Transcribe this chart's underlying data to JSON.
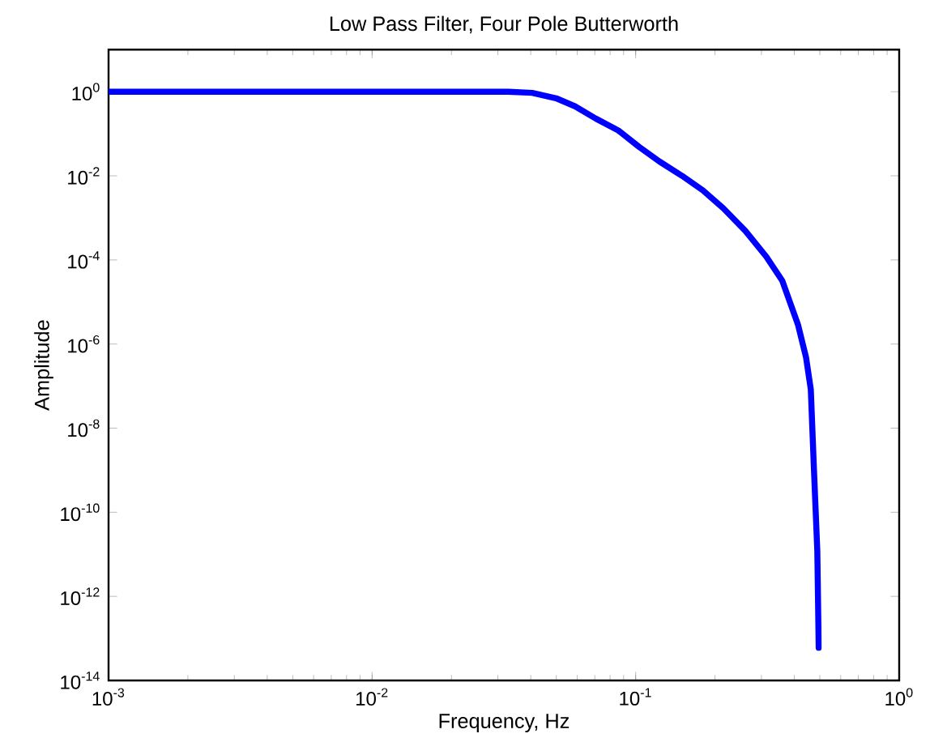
{
  "chart_data": {
    "type": "line",
    "title": "Low Pass Filter, Four Pole Butterworth",
    "xlabel": "Frequency, Hz",
    "ylabel": "Amplitude",
    "log": "xy",
    "marker": "none",
    "line_style": "solid",
    "xlim": [
      0.001,
      1
    ],
    "ylim": [
      1e-14,
      10
    ],
    "xticks": [
      {
        "value": 0.001,
        "label": "10$^{-3}$"
      },
      {
        "value": 0.01,
        "label": "10$^{-2}$"
      },
      {
        "value": 0.1,
        "label": "10$^{-1}$"
      },
      {
        "value": 1,
        "label": "10$^{0}$"
      }
    ],
    "yticks": [
      {
        "value": 1e-14,
        "label": "10$^{-14}$"
      },
      {
        "value": 1e-12,
        "label": "10$^{-12}$"
      },
      {
        "value": 1e-10,
        "label": "10$^{-10}$"
      },
      {
        "value": 1e-08,
        "label": "10$^{-8}$"
      },
      {
        "value": 1e-06,
        "label": "10$^{-6}$"
      },
      {
        "value": 0.0001,
        "label": "10$^{-4}$"
      },
      {
        "value": 0.01,
        "label": "10$^{-2}$"
      },
      {
        "value": 1,
        "label": "10$^{0}$"
      }
    ],
    "series": [
      {
        "color": "#0000ff",
        "x": [
          0.001,
          0.0329,
          0.0405,
          0.0499,
          0.0589,
          0.0706,
          0.0859,
          0.103,
          0.123,
          0.15,
          0.18,
          0.215,
          0.261,
          0.313,
          0.36,
          0.413,
          0.443,
          0.462,
          0.475,
          0.489,
          0.495
        ],
        "values": [
          1,
          1,
          0.94,
          0.7,
          0.45,
          0.23,
          0.12,
          0.049,
          0.022,
          0.01,
          0.0045,
          0.0017,
          0.00049,
          0.00012,
          3.2e-05,
          2.9e-06,
          4.9e-07,
          8.3e-08,
          1e-09,
          1.2e-11,
          6e-14
        ]
      }
    ]
  }
}
